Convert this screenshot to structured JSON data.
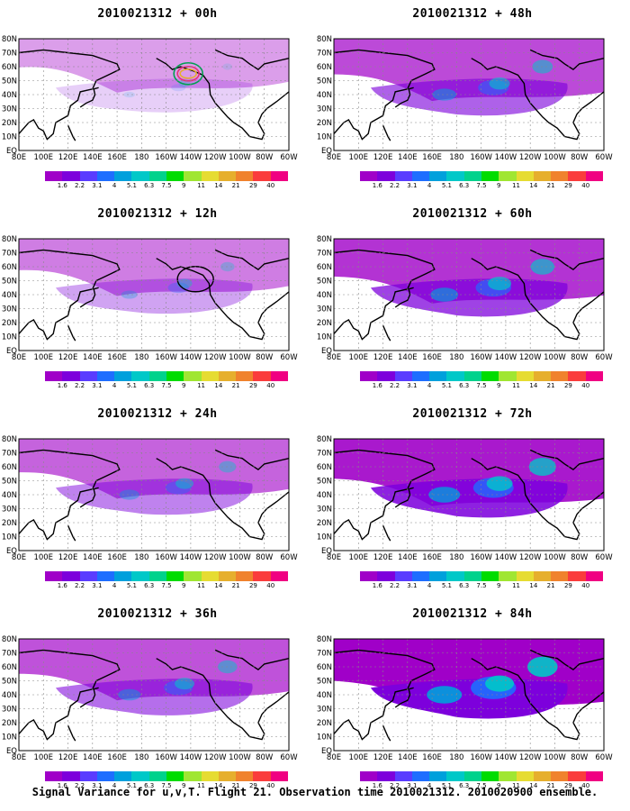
{
  "caption": "Signal Variance for u,v,T. Flight 21. Observation time 2010021312. 2010020900 ensemble.",
  "map": {
    "lon_labels": [
      "80E",
      "100E",
      "120E",
      "140E",
      "160E",
      "180",
      "160W",
      "140W",
      "120W",
      "100W",
      "80W",
      "60W"
    ],
    "lat_labels": [
      "EQ",
      "10N",
      "20N",
      "30N",
      "40N",
      "50N",
      "60N",
      "70N",
      "80N"
    ]
  },
  "colorbar": {
    "levels": [
      "1.6",
      "2.2",
      "3.1",
      "4",
      "5.1",
      "6.3",
      "7.5",
      "9",
      "11",
      "14",
      "21",
      "29",
      "40"
    ],
    "colors": [
      "#a000c8",
      "#7d00dc",
      "#5a3cff",
      "#1e6eff",
      "#00a0dc",
      "#00c8c8",
      "#00d28c",
      "#00dc00",
      "#a0e632",
      "#e6dc32",
      "#e6af2d",
      "#f0822d",
      "#fa3c3c",
      "#f00082"
    ]
  },
  "panels": [
    {
      "id": "p00",
      "title": "2010021312 + 00h",
      "intensity": 0.05,
      "circles": "concentric"
    },
    {
      "id": "p48",
      "title": "2010021312 + 48h",
      "intensity": 0.55,
      "circles": "none"
    },
    {
      "id": "p12",
      "title": "2010021312 + 12h",
      "intensity": 0.25,
      "circles": "single"
    },
    {
      "id": "p60",
      "title": "2010021312 + 60h",
      "intensity": 0.7,
      "circles": "none"
    },
    {
      "id": "p24",
      "title": "2010021312 + 24h",
      "intensity": 0.4,
      "circles": "none"
    },
    {
      "id": "p72",
      "title": "2010021312 + 72h",
      "intensity": 0.85,
      "circles": "none"
    },
    {
      "id": "p36",
      "title": "2010021312 + 36h",
      "intensity": 0.5,
      "circles": "none"
    },
    {
      "id": "p84",
      "title": "2010021312 + 84h",
      "intensity": 1.0,
      "circles": "none"
    }
  ]
}
